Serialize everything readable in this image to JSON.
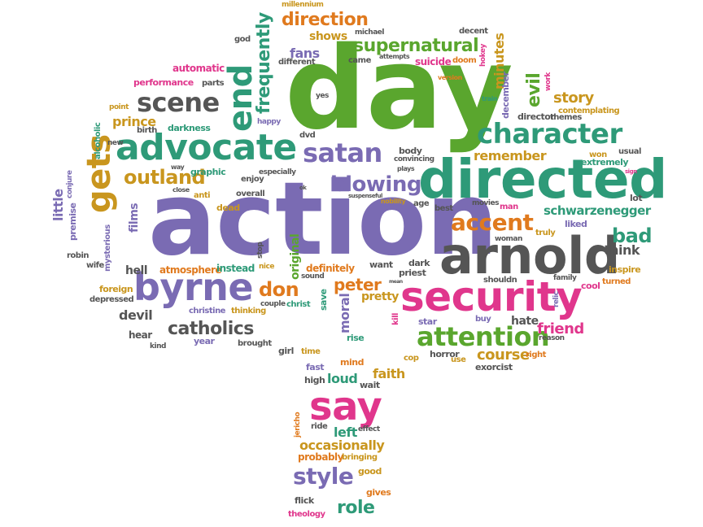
{
  "title": "word cloud",
  "colors": {
    "purple": "#7a6bb3",
    "green": "#2e9a78",
    "lime": "#5aa62e",
    "orange": "#e07a1e",
    "gold": "#c9961e",
    "pink": "#e0368c",
    "gray": "#555555"
  },
  "words": {
    "action": "action",
    "day": "day",
    "directed": "directed",
    "arnold": "arnold",
    "security": "security",
    "advocate": "advocate",
    "byrne": "byrne",
    "character": "character",
    "gets": "gets",
    "say": "say",
    "attention": "attention",
    "end": "end",
    "satan": "satan",
    "scene": "scene",
    "accent": "accent",
    "blowing": "blowing",
    "supernatural": "supernatural",
    "frequently": "frequently",
    "direction": "direction",
    "catholics": "catholics",
    "style": "style",
    "outland": "outland",
    "don": "don",
    "peter": "peter",
    "schwarzenegger": "schwarzenegger",
    "bad": "bad",
    "role": "role",
    "course": "course",
    "friend": "friend",
    "occasionally": "occasionally",
    "story": "story",
    "evil": "evil",
    "remember": "remember",
    "minutes": "minutes",
    "fans": "fans",
    "shows": "shows",
    "prince": "prince",
    "films": "films",
    "little": "little",
    "hell": "hell",
    "devil": "devil",
    "faith": "faith",
    "loud": "loud",
    "left": "left",
    "think": "think",
    "moral": "moral",
    "original": "original",
    "atmosphere": "atmosphere",
    "instead": "instead",
    "definitely": "definitely",
    "pretty": "pretty",
    "performance": "performance",
    "automatic": "automatic",
    "darkness": "darkness",
    "premise": "premise",
    "mysterious": "mysterious",
    "alcoholic": "alcoholic",
    "december": "december",
    "director": "director",
    "themes": "themes",
    "contemplating": "contemplating",
    "extremely": "extremely",
    "won": "won",
    "usual": "usual",
    "lot": "lot",
    "liked": "liked",
    "woman": "woman",
    "truly": "truly",
    "inspire": "inspire",
    "turned": "turned",
    "cool": "cool",
    "relic": "relic",
    "family": "family",
    "shouldn": "shouldn",
    "hate": "hate",
    "buy": "buy",
    "reason": "reason",
    "right": "right",
    "exorcist": "exorcist",
    "horror": "horror",
    "use": "use",
    "cop": "cop",
    "star": "star",
    "kill": "kill",
    "rise": "rise",
    "save": "save",
    "christ": "christ",
    "couple": "couple",
    "sound": "sound",
    "thinking": "thinking",
    "christine": "christine",
    "brought": "brought",
    "year": "year",
    "kind": "kind",
    "hear": "hear",
    "depressed": "depressed",
    "foreign": "foreign",
    "wife": "wife",
    "robin": "robin",
    "conjure": "conjure",
    "dead": "dead",
    "anti": "anti",
    "overall": "overall",
    "close": "close",
    "graphic": "graphic",
    "enjoy": "enjoy",
    "especially": "especially",
    "way": "way",
    "new": "new",
    "birth": "birth",
    "happy": "happy",
    "point": "point",
    "parts": "parts",
    "god": "god",
    "different": "different",
    "came": "came",
    "attempts": "attempts",
    "suicide": "suicide",
    "doom": "doom",
    "hokey": "hokey",
    "work": "work",
    "train": "train",
    "version": "version",
    "decent": "decent",
    "michael": "michael",
    "millennium": "millennium",
    "yes": "yes",
    "dvd": "dvd",
    "body": "body",
    "convincing": "convincing",
    "plays": "plays",
    "best": "best",
    "age": "age",
    "nobility": "nobility",
    "movies": "movies",
    "man": "man",
    "suspenseful": "suspenseful",
    "stop": "stop",
    "nice": "nice",
    "want": "want",
    "dark": "dark",
    "priest": "priest",
    "mean": "mean",
    "sign": "sign",
    "ok": "ok",
    "girl": "girl",
    "time": "time",
    "fast": "fast",
    "high": "high",
    "mind": "mind",
    "wait": "wait",
    "jericho": "jericho",
    "ride": "ride",
    "effect": "effect",
    "probably": "probably",
    "bringing": "bringing",
    "good": "good",
    "gives": "gives",
    "flick": "flick",
    "theology": "theology"
  }
}
